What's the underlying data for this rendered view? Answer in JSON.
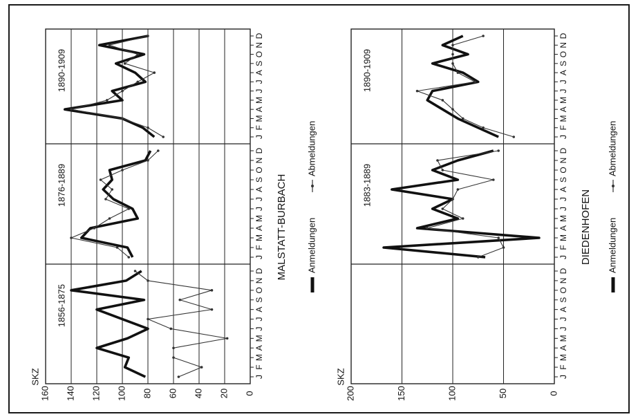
{
  "figure": {
    "ylabel_top": "SKZ",
    "ylabel_bottom": "SKZ",
    "month_labels": "JFMAMJJASOND",
    "legend_arrival": "Anmeldungen",
    "legend_departure": "Abmeldungen",
    "colors": {
      "arrival": "#111111",
      "departure": "#333333",
      "grid": "#222222"
    }
  },
  "chart_data": [
    {
      "type": "line",
      "title": "MALSTATT-BURBACH",
      "ylabel": "SKZ",
      "ylim": [
        0,
        160
      ],
      "yticks": [
        0,
        20,
        40,
        60,
        80,
        100,
        120,
        140,
        160
      ],
      "grid": true,
      "panels": [
        {
          "label": "1856-1875",
          "categories": [
            "J",
            "F",
            "M",
            "A",
            "M",
            "J",
            "J",
            "A",
            "S",
            "O",
            "N",
            "D"
          ],
          "series": [
            {
              "name": "Anmeldungen",
              "values": [
                82,
                98,
                95,
                120,
                96,
                80,
                100,
                120,
                83,
                140,
                97,
                85
              ]
            },
            {
              "name": "Abmeldungen",
              "values": [
                56,
                38,
                60,
                60,
                18,
                62,
                80,
                30,
                55,
                30,
                80,
                90
              ]
            }
          ]
        },
        {
          "label": "1876-1889",
          "categories": [
            "J",
            "F",
            "M",
            "A",
            "M",
            "J",
            "J",
            "A",
            "S",
            "O",
            "N",
            "D"
          ],
          "series": [
            {
              "name": "Anmeldungen",
              "values": [
                92,
                96,
                132,
                125,
                88,
                92,
                107,
                115,
                108,
                110,
                82,
                78
              ]
            },
            {
              "name": "Abmeldungen",
              "values": [
                95,
                104,
                140,
                122,
                110,
                95,
                113,
                108,
                117,
                100,
                80,
                72
              ]
            }
          ]
        },
        {
          "label": "1890-1909",
          "categories": [
            "J",
            "F",
            "M",
            "A",
            "M",
            "J",
            "J",
            "A",
            "S",
            "O",
            "N",
            "D"
          ],
          "series": [
            {
              "name": "Anmeldungen",
              "values": [
                75,
                84,
                100,
                145,
                100,
                108,
                82,
                90,
                105,
                83,
                118,
                80
              ]
            },
            {
              "name": "Abmeldungen",
              "values": [
                68,
                80,
                100,
                140,
                112,
                100,
                88,
                75,
                98,
                88,
                110,
                80
              ]
            }
          ]
        }
      ]
    },
    {
      "type": "line",
      "title": "DIEDENHOFEN",
      "ylabel": "SKZ",
      "ylim": [
        0,
        200
      ],
      "yticks": [
        0,
        50,
        100,
        150,
        200
      ],
      "grid": true,
      "panels": [
        {
          "label": "",
          "categories": [
            "J",
            "F",
            "M",
            "A",
            "M",
            "J",
            "J",
            "A",
            "S",
            "O",
            "N",
            "D"
          ],
          "series": []
        },
        {
          "label": "1883-1889",
          "categories": [
            "J",
            "F",
            "M",
            "A",
            "M",
            "J",
            "J",
            "A",
            "S",
            "O",
            "N",
            "D"
          ],
          "series": [
            {
              "name": "Anmeldungen",
              "values": [
                68,
                168,
                15,
                135,
                95,
                120,
                100,
                160,
                95,
                120,
                95,
                60
              ]
            },
            {
              "name": "Abmeldungen",
              "values": [
                75,
                50,
                55,
                125,
                90,
                110,
                100,
                95,
                60,
                110,
                115,
                55
              ]
            }
          ]
        },
        {
          "label": "1890-1909",
          "categories": [
            "J",
            "F",
            "M",
            "A",
            "M",
            "J",
            "J",
            "A",
            "S",
            "O",
            "N",
            "D"
          ],
          "series": [
            {
              "name": "Anmeldungen",
              "values": [
                55,
                75,
                95,
                110,
                125,
                120,
                75,
                90,
                120,
                85,
                110,
                90
              ]
            },
            {
              "name": "Abmeldungen",
              "values": [
                40,
                70,
                90,
                100,
                110,
                135,
                78,
                95,
                100,
                100,
                100,
                70
              ]
            }
          ]
        }
      ]
    }
  ]
}
